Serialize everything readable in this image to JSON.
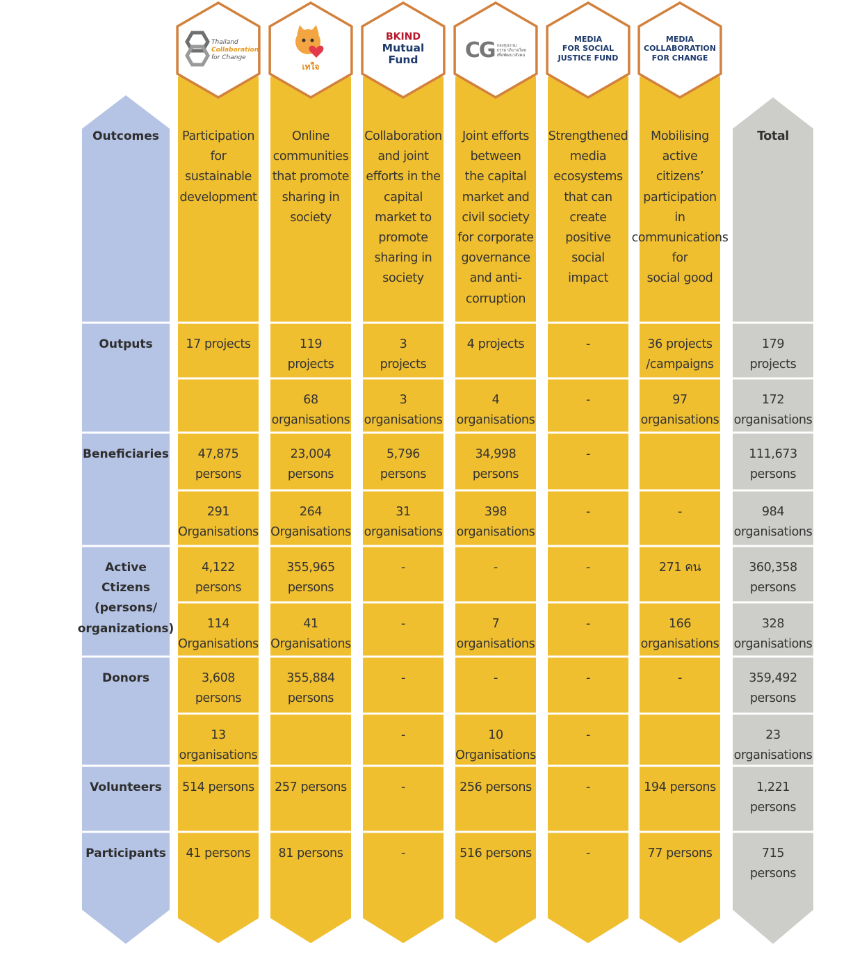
{
  "chart_data": {
    "type": "table",
    "columns": [
      {
        "logo": {
          "icon": "tcc-hexagon-logo",
          "lines": [
            "Thailand",
            "Collaboration",
            "for Change"
          ]
        },
        "outcome": "Participation for sustainable development",
        "outcome_lines": [
          "Participation",
          "for",
          "sustainable",
          "development"
        ]
      },
      {
        "logo": {
          "icon": "taejai-cat-mascot-logo",
          "lines": [
            "เทใจ"
          ]
        },
        "outcome": "Online communities that promote sharing in society",
        "outcome_lines": [
          "Online",
          "communities",
          "that promote",
          "sharing in",
          "society"
        ]
      },
      {
        "logo": {
          "icon": "bkind-logo",
          "lines": [
            "BKIND",
            "Mutual Fund"
          ]
        },
        "outcome": "Collaboration and joint efforts in the capital market to promote sharing in society",
        "outcome_lines": [
          "Collaboration",
          "and joint",
          "efforts in the",
          "capital",
          "market to",
          "promote",
          "sharing in",
          "society"
        ]
      },
      {
        "logo": {
          "icon": "cg-fund-logo",
          "lines": [
            "CG",
            "กองทุนรวม",
            "ธรรมาภิบาลไทย",
            "เพื่อพัฒนาสังคม"
          ]
        },
        "outcome": "Joint efforts between the capital market and civil society for corporate governance and anti-corruption",
        "outcome_lines": [
          "Joint efforts",
          "between",
          "the capital",
          "market and",
          "civil society",
          "for corporate",
          "governance",
          "and anti-",
          "corruption"
        ]
      },
      {
        "logo": {
          "icon": "media-social-justice-logo",
          "lines": [
            "MEDIA",
            "FOR SOCIAL",
            "JUSTICE FUND"
          ]
        },
        "outcome": "Strengthened media ecosystems that can create positive social impact",
        "outcome_lines": [
          "Strengthened",
          "media",
          "ecosystems",
          "that can",
          "create",
          "positive",
          "social",
          "impact"
        ]
      },
      {
        "logo": {
          "icon": "media-collaboration-logo",
          "lines": [
            "MEDIA",
            "COLLABORATION",
            "FOR CHANGE"
          ]
        },
        "outcome": "Mobilising active citizens' participation in communications for social good",
        "outcome_lines": [
          "Mobilising",
          "active",
          "citizens’",
          "participation",
          "in",
          "communications",
          "for",
          "social good"
        ]
      }
    ],
    "total_label": "Total",
    "outcomes_label": "Outcomes",
    "rows": [
      {
        "label": "Outputs",
        "label_lines": [
          "Outputs"
        ],
        "sub_rows": [
          {
            "cells": [
              [
                "17 projects"
              ],
              [
                "119",
                "projects"
              ],
              [
                "3",
                "projects"
              ],
              [
                "4 projects"
              ],
              [
                "-"
              ],
              [
                "36 projects",
                "/campaigns"
              ]
            ],
            "total": [
              "179",
              "projects"
            ]
          },
          {
            "cells": [
              [],
              [
                "68",
                "organisations"
              ],
              [
                "3",
                "organisations"
              ],
              [
                "4",
                "organisations"
              ],
              [
                "-"
              ],
              [
                "97",
                "organisations"
              ]
            ],
            "total": [
              "172",
              "organisations"
            ]
          }
        ]
      },
      {
        "label": "Beneficiaries",
        "label_lines": [
          "Beneficiaries"
        ],
        "sub_rows": [
          {
            "cells": [
              [
                "47,875",
                "persons"
              ],
              [
                "23,004",
                "persons"
              ],
              [
                "5,796",
                "persons"
              ],
              [
                "34,998",
                "persons"
              ],
              [
                "-"
              ],
              []
            ],
            "total": [
              "111,673",
              "persons"
            ]
          },
          {
            "cells": [
              [
                "291",
                "Organisations"
              ],
              [
                "264",
                "Organisations"
              ],
              [
                "31",
                "organisations"
              ],
              [
                "398",
                "organisations"
              ],
              [
                "-"
              ],
              [
                "-"
              ]
            ],
            "total": [
              "984",
              "organisations"
            ]
          }
        ]
      },
      {
        "label": "Active Ctizens (persons/ organizations)",
        "label_lines": [
          "Active",
          "Ctizens",
          "(persons/",
          "organizations)"
        ],
        "sub_rows": [
          {
            "cells": [
              [
                "4,122",
                "persons"
              ],
              [
                "355,965",
                "persons"
              ],
              [
                "-"
              ],
              [
                "-"
              ],
              [
                "-"
              ],
              [
                "271 คน"
              ]
            ],
            "total": [
              "360,358",
              "persons"
            ]
          },
          {
            "cells": [
              [
                "114",
                "Organisations"
              ],
              [
                "41",
                "Organisations"
              ],
              [
                "-"
              ],
              [
                "7",
                "organisations"
              ],
              [
                "-"
              ],
              [
                "166",
                "organisations"
              ]
            ],
            "total": [
              "328",
              "organisations"
            ]
          }
        ]
      },
      {
        "label": "Donors",
        "label_lines": [
          "Donors"
        ],
        "sub_rows": [
          {
            "cells": [
              [
                "3,608",
                "persons"
              ],
              [
                "355,884",
                "persons"
              ],
              [
                "-"
              ],
              [
                "-"
              ],
              [
                "-"
              ],
              [
                "-"
              ]
            ],
            "total": [
              "359,492",
              "persons"
            ]
          },
          {
            "cells": [
              [
                "13",
                "organisations"
              ],
              [],
              [
                "-"
              ],
              [
                "10",
                "Organisations"
              ],
              [
                "-"
              ],
              []
            ],
            "total": [
              "23",
              "organisations"
            ]
          }
        ]
      },
      {
        "label": "Volunteers",
        "label_lines": [
          "Volunteers"
        ],
        "sub_rows": [
          {
            "cells": [
              [
                "514 persons"
              ],
              [
                "257 persons"
              ],
              [
                "-"
              ],
              [
                "256 persons"
              ],
              [
                "-"
              ],
              [
                "194 persons"
              ]
            ],
            "total": [
              "1,221",
              "persons"
            ]
          }
        ]
      },
      {
        "label": "Participants",
        "label_lines": [
          "Participants"
        ],
        "sub_rows": [
          {
            "cells": [
              [
                "41 persons"
              ],
              [
                "81 persons"
              ],
              [
                "-"
              ],
              [
                "516 persons"
              ],
              [
                "-"
              ],
              [
                "77 persons"
              ]
            ],
            "total": [
              "715",
              "persons"
            ]
          }
        ]
      }
    ],
    "colors": {
      "label_column": "#b5c3e4",
      "org_columns": "#f0bf30",
      "total_column": "#cdcdc9",
      "hexagon_border": "#d2813d",
      "text": "#333333"
    }
  }
}
